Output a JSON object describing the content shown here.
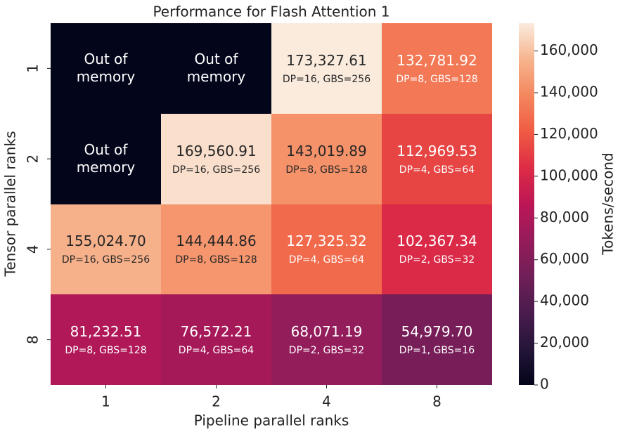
{
  "chart_data": {
    "type": "heatmap",
    "title": "Performance for Flash Attention 1",
    "xlabel": "Pipeline parallel ranks",
    "ylabel": "Tensor parallel ranks",
    "colorbar_label": "Tokens/second",
    "x_categories": [
      "1",
      "2",
      "4",
      "8"
    ],
    "y_categories": [
      "1",
      "2",
      "4",
      "8"
    ],
    "values": [
      [
        null,
        null,
        173327.61,
        132781.92
      ],
      [
        null,
        169560.91,
        143019.89,
        112969.53
      ],
      [
        155024.7,
        144444.86,
        127325.32,
        102367.34
      ],
      [
        81232.51,
        76572.21,
        68071.19,
        54979.7
      ]
    ],
    "value_labels": [
      [
        "Out of memory",
        "Out of memory",
        "173,327.61",
        "132,781.92"
      ],
      [
        "Out of memory",
        "169,560.91",
        "143,019.89",
        "112,969.53"
      ],
      [
        "155,024.70",
        "144,444.86",
        "127,325.32",
        "102,367.34"
      ],
      [
        "81,232.51",
        "76,572.21",
        "68,071.19",
        "54,979.70"
      ]
    ],
    "annotations": [
      [
        null,
        null,
        "DP=16, GBS=256",
        "DP=8, GBS=128"
      ],
      [
        null,
        "DP=16, GBS=256",
        "DP=8, GBS=128",
        "DP=4, GBS=64"
      ],
      [
        "DP=16, GBS=256",
        "DP=8, GBS=128",
        "DP=4, GBS=64",
        "DP=2, GBS=32"
      ],
      [
        "DP=8, GBS=128",
        "DP=4, GBS=64",
        "DP=2, GBS=32",
        "DP=1, GBS=16"
      ]
    ],
    "colormap": "rocket",
    "missing_color": "#03051a",
    "clim": [
      0,
      173327.61
    ],
    "cticks": [
      0,
      {
        "value": 20000,
        "label": "20,000"
      },
      {
        "value": 40000,
        "label": "40,000"
      },
      {
        "value": 60000,
        "label": "60,000"
      },
      {
        "value": 80000,
        "label": "80,000"
      },
      {
        "value": 100000,
        "label": "100,000"
      },
      {
        "value": 120000,
        "label": "120,000"
      },
      {
        "value": 140000,
        "label": "140,000"
      },
      {
        "value": 160000,
        "label": "160,000"
      }
    ]
  }
}
